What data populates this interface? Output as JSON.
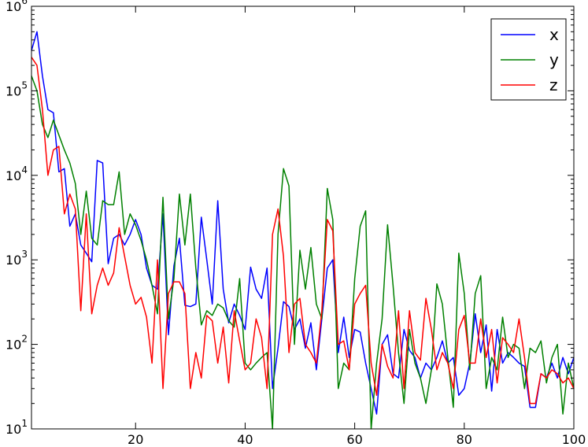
{
  "chart_data": {
    "type": "line",
    "title": "",
    "xlabel": "",
    "ylabel": "",
    "xlim": [
      1,
      100
    ],
    "ylim": [
      10,
      1000000
    ],
    "yscale": "log",
    "grid": false,
    "legend_position": "top-right",
    "x_ticks": [
      20,
      40,
      60,
      80,
      100
    ],
    "x_tick_labels": [
      "20",
      "40",
      "60",
      "80",
      "100"
    ],
    "y_ticks": [
      10,
      100,
      1000,
      10000,
      100000,
      1000000
    ],
    "y_tick_labels": [
      {
        "base": "10",
        "exp": "1"
      },
      {
        "base": "10",
        "exp": "2"
      },
      {
        "base": "10",
        "exp": "3"
      },
      {
        "base": "10",
        "exp": "4"
      },
      {
        "base": "10",
        "exp": "5"
      },
      {
        "base": "10",
        "exp": "6"
      }
    ],
    "series": [
      {
        "name": "x",
        "color": "#0000ff",
        "values": [
          300000,
          500000,
          150000,
          60000,
          55000,
          11000,
          12000,
          2500,
          3500,
          1500,
          1200,
          950,
          15000,
          14000,
          900,
          1800,
          2000,
          1500,
          2000,
          3000,
          2000,
          800,
          500,
          450,
          3500,
          130,
          850,
          1800,
          290,
          280,
          300,
          3200,
          1000,
          300,
          5000,
          450,
          180,
          300,
          220,
          150,
          820,
          450,
          350,
          800,
          30,
          90,
          320,
          280,
          150,
          200,
          90,
          180,
          50,
          200,
          800,
          1000,
          80,
          210,
          70,
          150,
          140,
          60,
          30,
          15,
          100,
          130,
          45,
          40,
          150,
          85,
          70,
          40,
          60,
          50,
          70,
          110,
          60,
          70,
          25,
          30,
          60,
          230,
          80,
          170,
          28,
          150,
          60,
          80,
          70,
          60,
          55,
          18,
          18,
          45,
          40,
          60,
          40,
          70,
          45,
          70
        ]
      },
      {
        "name": "y",
        "color": "#008000",
        "values": [
          150000,
          100000,
          40000,
          28000,
          45000,
          30000,
          20000,
          14000,
          8000,
          2000,
          6500,
          1800,
          1500,
          5000,
          4500,
          4500,
          11000,
          2000,
          3500,
          2600,
          1700,
          1000,
          500,
          230,
          5500,
          200,
          600,
          6000,
          1500,
          6000,
          800,
          170,
          250,
          220,
          300,
          270,
          190,
          160,
          600,
          60,
          50,
          60,
          70,
          80,
          10,
          2000,
          12000,
          7500,
          100,
          1300,
          450,
          1400,
          300,
          200,
          7000,
          3000,
          30,
          60,
          50,
          600,
          2500,
          3800,
          10,
          60,
          200,
          2600,
          500,
          80,
          20,
          150,
          60,
          40,
          20,
          50,
          520,
          300,
          70,
          18,
          1200,
          400,
          50,
          400,
          650,
          30,
          70,
          50,
          210,
          70,
          100,
          90,
          30,
          90,
          80,
          110,
          35,
          70,
          100,
          15,
          60,
          30
        ]
      },
      {
        "name": "z",
        "color": "#ff0000",
        "values": [
          250000,
          200000,
          60000,
          10000,
          20000,
          22000,
          3500,
          6000,
          4000,
          250,
          3500,
          230,
          500,
          800,
          500,
          700,
          2400,
          1100,
          500,
          300,
          360,
          210,
          60,
          1000,
          30,
          400,
          550,
          550,
          400,
          30,
          80,
          40,
          220,
          190,
          60,
          160,
          35,
          250,
          110,
          50,
          60,
          200,
          120,
          30,
          2000,
          4000,
          1100,
          80,
          300,
          350,
          100,
          80,
          60,
          250,
          3000,
          2200,
          100,
          110,
          50,
          300,
          400,
          500,
          60,
          25,
          100,
          55,
          40,
          250,
          30,
          250,
          80,
          65,
          350,
          150,
          50,
          80,
          60,
          30,
          150,
          220,
          60,
          60,
          200,
          70,
          150,
          35,
          120,
          100,
          80,
          200,
          70,
          20,
          20,
          45,
          40,
          50,
          45,
          35,
          40,
          30
        ]
      }
    ]
  }
}
